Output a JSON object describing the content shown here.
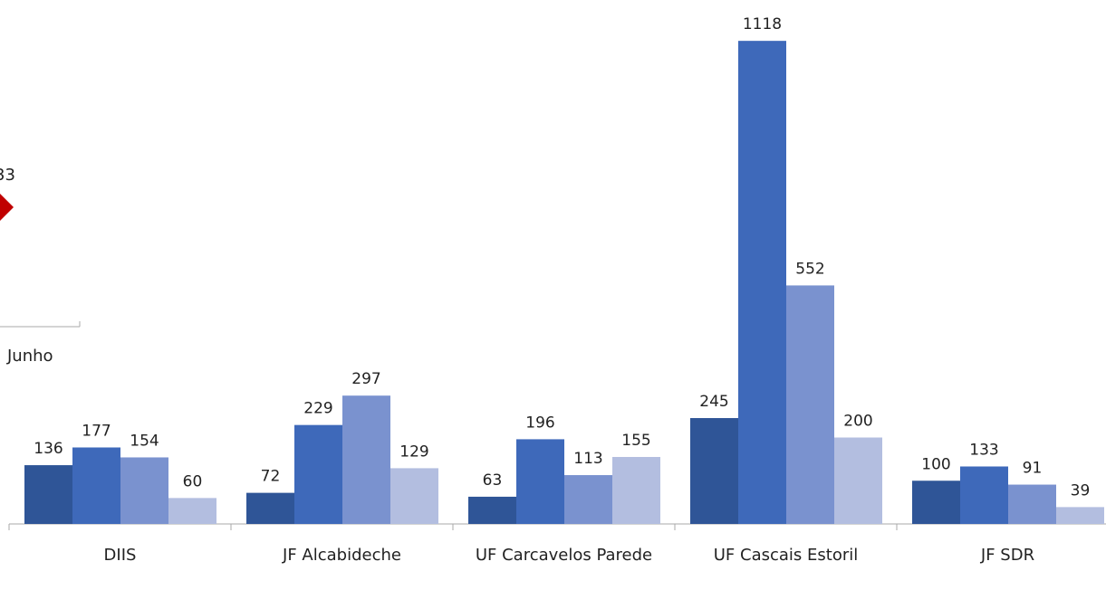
{
  "chart_data": {
    "type": "bar",
    "categories": [
      "DIIS",
      "JF Alcabideche",
      "UF Carcavelos Parede",
      "UF Cascais Estoril",
      "JF SDR"
    ],
    "series": [
      {
        "color": "#2f5597",
        "values": [
          136,
          72,
          63,
          245,
          100
        ]
      },
      {
        "color": "#3e69ba",
        "values": [
          177,
          229,
          196,
          1118,
          133
        ]
      },
      {
        "color": "#7a92cf",
        "values": [
          154,
          297,
          113,
          552,
          91
        ]
      },
      {
        "color": "#b3bee0",
        "values": [
          60,
          129,
          155,
          200,
          39
        ]
      }
    ],
    "ylim": [
      0,
      1200
    ],
    "annotations": [
      "33",
      "Junho"
    ]
  }
}
